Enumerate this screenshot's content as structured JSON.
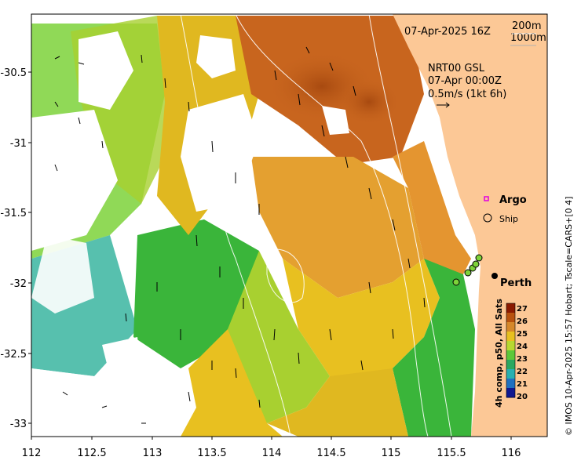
{
  "map": {
    "date_label": "07-Apr-2025 16Z",
    "contour_labels": [
      "200m",
      "1000m"
    ],
    "current_source": "NRT00 GSL",
    "current_time": "07-Apr 00:00Z",
    "current_scale": "0.5m/s (1kt 6h)",
    "legend": {
      "argo_label": "Argo",
      "ship_label": "Ship"
    },
    "city_label": "Perth",
    "credit": "© IMOS 10-Apr-2025 15:57 Hobart; Tscale=CARS+[0 4]",
    "colors": {
      "land": "#fcc896",
      "warm": "#c8651e",
      "mid": "#e8c020",
      "cool": "#3ab53a",
      "cold": "#20a0c0",
      "argo": "#e000e0"
    }
  },
  "x_axis": {
    "ticks": [
      "112",
      "112.5",
      "113",
      "113.5",
      "114",
      "114.5",
      "115",
      "115.5",
      "116"
    ]
  },
  "y_axis": {
    "ticks": [
      "-30.5",
      "-31",
      "-31.5",
      "-32",
      "-32.5",
      "-33"
    ]
  },
  "colorbar": {
    "label": "4h comp, p50, All Sats",
    "ticks": [
      "27",
      "26",
      "25",
      "24",
      "23",
      "22",
      "21",
      "20"
    ],
    "colors": [
      "#8b1a00",
      "#b8520e",
      "#d6882a",
      "#e8c020",
      "#b8d830",
      "#5cc83a",
      "#2aa860",
      "#28b0b0",
      "#2070c0",
      "#101890"
    ]
  }
}
